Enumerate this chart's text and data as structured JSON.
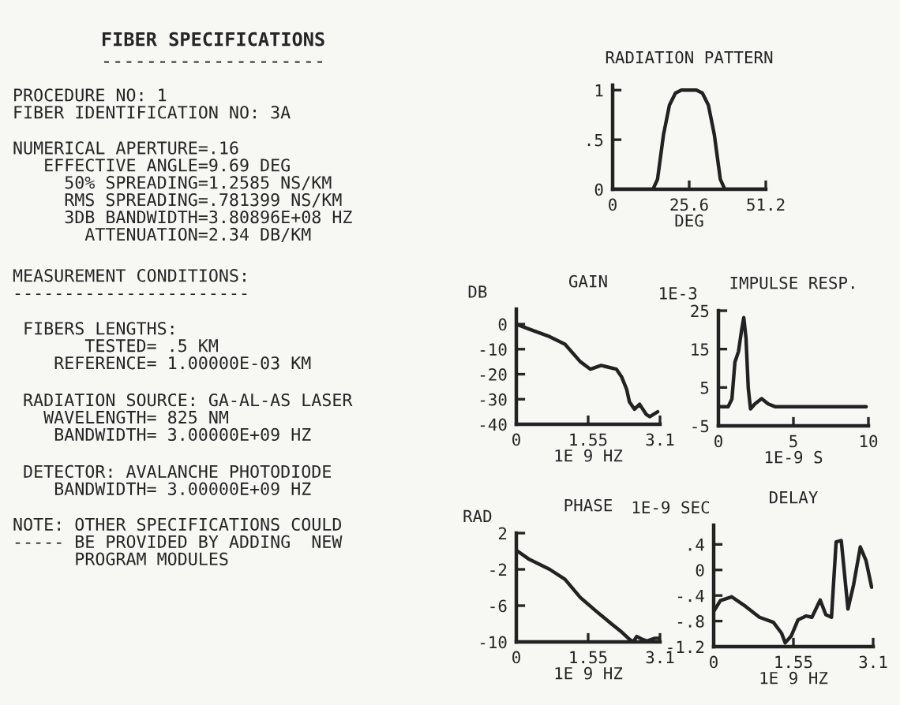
{
  "chart_data": [
    {
      "type": "other",
      "title": "FIBER SPECIFICATIONS",
      "subtitle": "--------------------",
      "annotations": [
        "PROCEDURE NO: 1\nFIBER IDENTIFICATION NO: 3A",
        "NUMERICAL APERTURE=.16\n   EFFECTIVE ANGLE=9.69 DEG\n     50% SPREADING=1.2585 NS/KM\n     RMS SPREADING=.781399 NS/KM\n     3DB BANDWIDTH=3.80896E+08 HZ\n       ATTENUATION=2.34 DB/KM",
        "MEASUREMENT CONDITIONS:\n-----------------------",
        " FIBERS LENGTHS:\n       TESTED= .5 KM\n    REFERENCE= 1.00000E-03 KM",
        " RADIATION SOURCE: GA-AL-AS LASER\n   WAVELENGTH= 825 NM\n    BANDWIDTH= 3.00000E+09 HZ",
        " DETECTOR: AVALANCHE PHOTODIODE\n    BANDWIDTH= 3.00000E+09 HZ",
        "NOTE: OTHER SPECIFICATIONS COULD\n----- BE PROVIDED BY ADDING  NEW\n      PROGRAM MODULES"
      ]
    },
    {
      "type": "line",
      "title": "RADIATION PATTERN",
      "xlabel": "DEG",
      "xlim": [
        0,
        51.2
      ],
      "xticks": [
        0,
        25.6,
        51.2
      ],
      "ylim": [
        0,
        1.05
      ],
      "yticks": [
        0,
        {
          "value": 0.5,
          "label": ".5"
        },
        1
      ],
      "grid": false,
      "legend": false,
      "marker": "none",
      "line_style": "solid",
      "series": [
        {
          "color": "#222222",
          "x": [
            0,
            13.5,
            15,
            17,
            19,
            21,
            23,
            28,
            30,
            32,
            34,
            36,
            37.5,
            51.2
          ],
          "values": [
            0,
            0,
            0.1,
            0.55,
            0.85,
            0.97,
            1.0,
            1.0,
            0.97,
            0.85,
            0.55,
            0.1,
            0,
            0
          ]
        }
      ]
    },
    {
      "type": "line",
      "title": "GAIN",
      "ylabel": "DB",
      "xlabel": "1E 9 HZ",
      "xlim": [
        0,
        3.1
      ],
      "xticks": [
        0,
        1.55,
        3.1
      ],
      "ylim": [
        -40,
        6
      ],
      "yticks": [
        -40,
        -30,
        -20,
        -10,
        0
      ],
      "grid": false,
      "legend": false,
      "marker": "none",
      "line_style": "solid",
      "series": [
        {
          "color": "#222222",
          "x": [
            0,
            0.28,
            0.72,
            1.05,
            1.38,
            1.6,
            1.83,
            1.94,
            2.16,
            2.27,
            2.38,
            2.44,
            2.55,
            2.66,
            2.8,
            2.88,
            3.05
          ],
          "values": [
            0,
            -2,
            -5,
            -8,
            -15,
            -18,
            -16.5,
            -17,
            -18,
            -21,
            -26,
            -31,
            -34,
            -32,
            -36,
            -37,
            -35
          ]
        }
      ]
    },
    {
      "type": "line",
      "title": "IMPULSE RESP.",
      "ylabel": "1E-3",
      "xlabel": "1E-9 S",
      "xlim": [
        0,
        10
      ],
      "xticks": [
        0,
        5,
        10
      ],
      "ylim": [
        -5,
        25
      ],
      "yticks": [
        -5,
        5,
        15,
        25
      ],
      "grid": false,
      "legend": false,
      "marker": "none",
      "line_style": "solid",
      "series": [
        {
          "color": "#222222",
          "x": [
            0,
            0.65,
            0.9,
            1.1,
            1.34,
            1.54,
            1.69,
            1.84,
            1.99,
            2.14,
            2.43,
            2.88,
            3.32,
            3.77,
            4.5,
            6.3,
            9.85
          ],
          "values": [
            0,
            0,
            2,
            11.6,
            14.4,
            19.8,
            23.2,
            17.8,
            4.8,
            -0.6,
            0.7,
            2.1,
            0.7,
            0,
            0,
            0,
            0
          ]
        }
      ]
    },
    {
      "type": "line",
      "title": "PHASE",
      "ylabel": "RAD",
      "xlabel": "1E 9 HZ",
      "xlim": [
        0,
        3.1
      ],
      "xticks": [
        0,
        1.55,
        3.1
      ],
      "ylim": [
        -10,
        2
      ],
      "yticks": [
        -10,
        -6,
        -2,
        2
      ],
      "grid": false,
      "legend": false,
      "marker": "none",
      "line_style": "solid",
      "series": [
        {
          "color": "#222222",
          "x": [
            0,
            0.28,
            0.72,
            1.05,
            1.38,
            1.72,
            2.05,
            2.27,
            2.44,
            2.52,
            2.6,
            2.71,
            2.82,
            2.99,
            3.1
          ],
          "values": [
            0.1,
            -0.9,
            -2,
            -3.1,
            -5.1,
            -6.6,
            -8,
            -8.9,
            -9.7,
            -10,
            -9.4,
            -9.7,
            -9.9,
            -9.6,
            -9.6
          ]
        }
      ]
    },
    {
      "type": "line",
      "title": "DELAY",
      "ylabel": "1E-9 SEC",
      "xlabel": "1E 9 HZ",
      "xlim": [
        0,
        3.1
      ],
      "xticks": [
        0,
        1.55,
        3.1
      ],
      "ylim": [
        -1.2,
        0.7
      ],
      "yticks": [
        {
          "value": -1.2,
          "label": "-1.2"
        },
        {
          "value": -0.8,
          "label": "-.8"
        },
        {
          "value": -0.4,
          "label": "-.4"
        },
        0,
        {
          "value": 0.4,
          "label": ".4"
        }
      ],
      "grid": false,
      "legend": false,
      "marker": "none",
      "line_style": "solid",
      "series": [
        {
          "color": "#222222",
          "x": [
            0,
            0.13,
            0.35,
            0.62,
            0.89,
            1.16,
            1.32,
            1.39,
            1.51,
            1.64,
            1.8,
            1.91,
            2.07,
            2.18,
            2.29,
            2.38,
            2.48,
            2.61,
            2.72,
            2.85,
            2.96,
            3.07
          ],
          "values": [
            -0.65,
            -0.48,
            -0.42,
            -0.57,
            -0.74,
            -0.82,
            -0.99,
            -1.14,
            -1.03,
            -0.78,
            -0.72,
            -0.74,
            -0.47,
            -0.7,
            -0.74,
            0.44,
            0.46,
            -0.61,
            -0.23,
            0.36,
            0.15,
            -0.27
          ]
        }
      ]
    }
  ]
}
